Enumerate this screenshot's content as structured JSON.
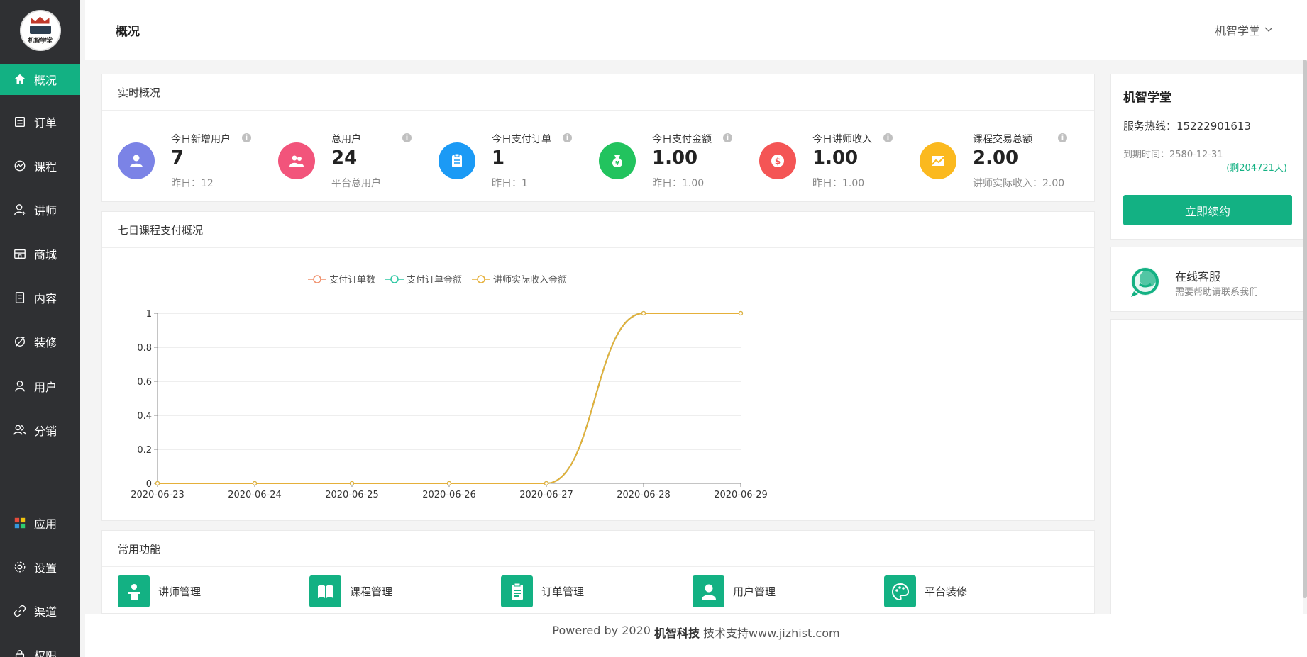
{
  "logo": {
    "text": "机智学堂"
  },
  "sidebar": {
    "items": [
      {
        "label": "概况",
        "icon": "home-icon"
      },
      {
        "label": "订单",
        "icon": "order-icon"
      },
      {
        "label": "课程",
        "icon": "course-icon"
      },
      {
        "label": "讲师",
        "icon": "teacher-icon"
      },
      {
        "label": "商城",
        "icon": "shop-icon"
      },
      {
        "label": "内容",
        "icon": "content-icon"
      },
      {
        "label": "装修",
        "icon": "decorate-icon"
      },
      {
        "label": "用户",
        "icon": "user-icon"
      },
      {
        "label": "分销",
        "icon": "distribution-icon"
      },
      {
        "label": "应用",
        "icon": "apps-icon"
      },
      {
        "label": "设置",
        "icon": "gear-icon"
      },
      {
        "label": "渠道",
        "icon": "link-icon"
      },
      {
        "label": "权限",
        "icon": "permission-icon"
      }
    ]
  },
  "header": {
    "tab": "概况",
    "user": "机智学堂"
  },
  "realtime": {
    "title": "实时概况",
    "stats": [
      {
        "label": "今日新增用户",
        "value": "7",
        "sub": "昨日：12",
        "color": "#7b83e6"
      },
      {
        "label": "总用户",
        "value": "24",
        "sub": "平台总用户",
        "color": "#f2547b"
      },
      {
        "label": "今日支付订单",
        "value": "1",
        "sub": "昨日：1",
        "color": "#1b9af5"
      },
      {
        "label": "今日支付金额",
        "value": "1.00",
        "sub": "昨日：1.00",
        "color": "#22c35e"
      },
      {
        "label": "今日讲师收入",
        "value": "1.00",
        "sub": "昨日：1.00",
        "color": "#f45555"
      },
      {
        "label": "课程交易总额",
        "value": "2.00",
        "sub": "讲师实际收入：2.00",
        "color": "#fbb91f"
      }
    ]
  },
  "weekly": {
    "title": "七日课程支付概况"
  },
  "chart_data": {
    "type": "line",
    "categories": [
      "2020-06-23",
      "2020-06-24",
      "2020-06-25",
      "2020-06-26",
      "2020-06-27",
      "2020-06-28",
      "2020-06-29"
    ],
    "series": [
      {
        "name": "支付订单数",
        "color": "#f0906c",
        "values": [
          0,
          0,
          0,
          0,
          0,
          1,
          1
        ]
      },
      {
        "name": "支付订单金额",
        "color": "#2ec7a3",
        "values": [
          0,
          0,
          0,
          0,
          0,
          1,
          1
        ]
      },
      {
        "name": "讲师实际收入金额",
        "color": "#e5b03a",
        "values": [
          0,
          0,
          0,
          0,
          0,
          1,
          1
        ]
      }
    ],
    "yticks": [
      "0",
      "0.2",
      "0.4",
      "0.6",
      "0.8",
      "1"
    ],
    "ylim": [
      0,
      1
    ],
    "legend": "top",
    "grid": true,
    "smooth": true
  },
  "common": {
    "title": "常用功能",
    "items": [
      {
        "label": "讲师管理",
        "icon": "teacher-manage-icon"
      },
      {
        "label": "课程管理",
        "icon": "book-icon"
      },
      {
        "label": "订单管理",
        "icon": "clipboard-icon"
      },
      {
        "label": "用户管理",
        "icon": "user-manage-icon"
      },
      {
        "label": "平台装修",
        "icon": "palette-icon"
      }
    ]
  },
  "account": {
    "name": "机智学堂",
    "hotline": "服务热线：15222901613",
    "expire": "到期时间：2580-12-31",
    "remain": "(剩204721天)",
    "renew": "立即续约"
  },
  "service": {
    "title": "在线客服",
    "sub": "需要帮助请联系我们"
  },
  "footer": {
    "prefix": "Powered by 2020",
    "brand": "机智科技",
    "suffix": "技术支持www.jizhist.com"
  },
  "colors": {
    "accent": "#13b183",
    "sidebar_bg": "#2f3033"
  }
}
